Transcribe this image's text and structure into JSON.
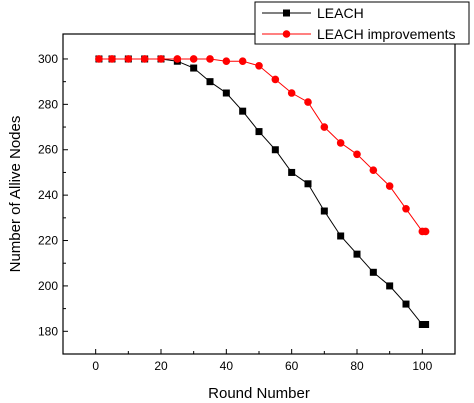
{
  "chart_data": {
    "type": "line",
    "title": "",
    "xlabel": "Round Number",
    "ylabel": "Number of Allive Nodes",
    "xlim": [
      -10,
      110
    ],
    "ylim": [
      170,
      311
    ],
    "x_ticks": [
      0,
      20,
      40,
      60,
      80,
      100
    ],
    "y_ticks": [
      180,
      200,
      220,
      240,
      260,
      280,
      300
    ],
    "grid": false,
    "legend_position": "top-right",
    "x": [
      1,
      5,
      10,
      15,
      20,
      25,
      30,
      35,
      40,
      45,
      50,
      55,
      60,
      65,
      70,
      75,
      80,
      85,
      90,
      95,
      100,
      101
    ],
    "series": [
      {
        "name": "LEACH",
        "color": "#000000",
        "marker": "square",
        "values": [
          300,
          300,
          300,
          300,
          300,
          299,
          296,
          290,
          285,
          277,
          268,
          260,
          250,
          245,
          233,
          222,
          214,
          206,
          200,
          192,
          183,
          183
        ]
      },
      {
        "name": "LEACH improvements",
        "color": "#ff0000",
        "marker": "circle",
        "values": [
          300,
          300,
          300,
          300,
          300,
          300,
          300,
          300,
          299,
          299,
          297,
          291,
          285,
          281,
          270,
          263,
          258,
          251,
          244,
          234,
          224,
          224
        ]
      }
    ]
  }
}
